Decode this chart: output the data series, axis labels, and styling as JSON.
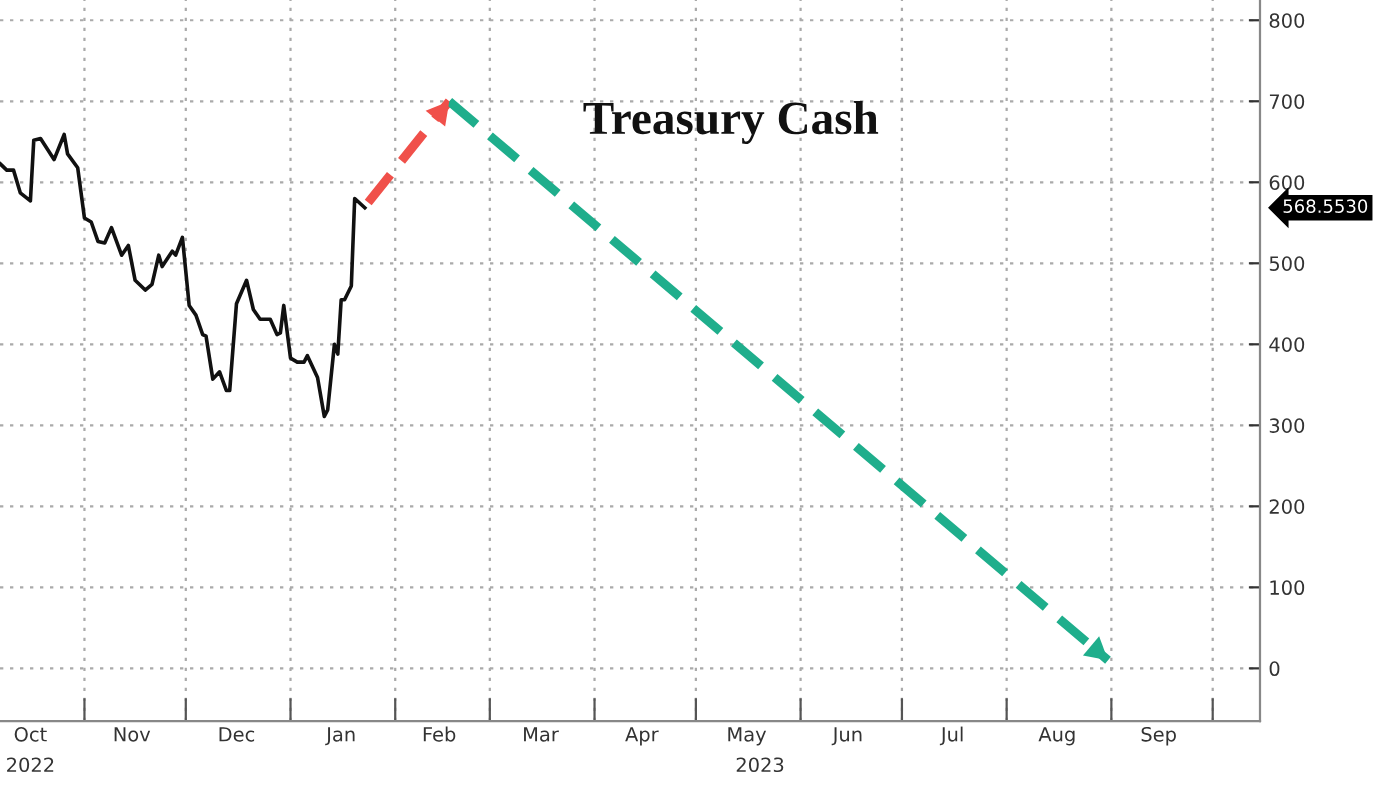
{
  "chart_data": {
    "type": "line",
    "title": "Treasury Cash",
    "xlim": [
      "2022-10-07",
      "2023-10-15"
    ],
    "xticks": [
      {
        "value": "2022-10-16",
        "label": "Oct"
      },
      {
        "value": "2022-11-01",
        "label": null
      },
      {
        "value": "2022-11-15",
        "label": "Nov"
      },
      {
        "value": "2022-12-01",
        "label": null
      },
      {
        "value": "2022-12-16",
        "label": "Dec"
      },
      {
        "value": "2023-01-01",
        "label": null
      },
      {
        "value": "2023-01-16",
        "label": "Jan"
      },
      {
        "value": "2023-02-01",
        "label": null
      },
      {
        "value": "2023-02-14",
        "label": "Feb"
      },
      {
        "value": "2023-03-01",
        "label": null
      },
      {
        "value": "2023-03-16",
        "label": "Mar"
      },
      {
        "value": "2023-04-01",
        "label": null
      },
      {
        "value": "2023-04-15",
        "label": "Apr"
      },
      {
        "value": "2023-05-01",
        "label": null
      },
      {
        "value": "2023-05-16",
        "label": "May"
      },
      {
        "value": "2023-06-01",
        "label": null
      },
      {
        "value": "2023-06-15",
        "label": "Jun"
      },
      {
        "value": "2023-07-01",
        "label": null
      },
      {
        "value": "2023-07-16",
        "label": "Jul"
      },
      {
        "value": "2023-08-01",
        "label": null
      },
      {
        "value": "2023-08-16",
        "label": "Aug"
      },
      {
        "value": "2023-09-01",
        "label": null
      },
      {
        "value": "2023-09-15",
        "label": "Sep"
      },
      {
        "value": "2023-10-01",
        "label": null
      }
    ],
    "x2lim": [
      "2022-10-07",
      "2023-10-15"
    ],
    "x2ticks": [
      {
        "value": "2022-10-16",
        "label": "2022"
      },
      {
        "value": "2023-05-20",
        "label": "2023"
      }
    ],
    "ylim": [
      -65,
      825
    ],
    "yticks": [
      0,
      100,
      200,
      300,
      400,
      500,
      600,
      700,
      800
    ],
    "grid": true,
    "line_style": "solid",
    "series": [
      {
        "color": "#111111",
        "x": [
          "2022-10-07",
          "2022-10-09",
          "2022-10-11",
          "2022-10-13",
          "2022-10-16",
          "2022-10-17",
          "2022-10-19",
          "2022-10-23",
          "2022-10-26",
          "2022-10-27",
          "2022-10-30",
          "2022-11-01",
          "2022-11-03",
          "2022-11-05",
          "2022-11-07",
          "2022-11-09",
          "2022-11-12",
          "2022-11-14",
          "2022-11-16",
          "2022-11-19",
          "2022-11-21",
          "2022-11-23",
          "2022-11-24",
          "2022-11-27",
          "2022-11-28",
          "2022-11-30",
          "2022-12-02",
          "2022-12-04",
          "2022-12-06",
          "2022-12-07",
          "2022-12-09",
          "2022-12-11",
          "2022-12-13",
          "2022-12-14",
          "2022-12-16",
          "2022-12-19",
          "2022-12-21",
          "2022-12-23",
          "2022-12-26",
          "2022-12-28",
          "2022-12-29",
          "2022-12-30",
          "2023-01-01",
          "2023-01-03",
          "2023-01-05",
          "2023-01-06",
          "2023-01-09",
          "2023-01-11",
          "2023-01-12",
          "2023-01-14",
          "2023-01-15",
          "2023-01-16",
          "2023-01-17",
          "2023-01-19",
          "2023-01-20",
          "2023-01-23"
        ],
        "values": [
          623,
          615,
          615,
          587,
          577,
          652,
          654,
          628,
          659,
          635,
          618,
          556,
          551,
          527,
          525,
          544,
          510,
          522,
          479,
          467,
          474,
          510,
          496,
          515,
          510,
          532,
          448,
          436,
          412,
          410,
          357,
          366,
          343,
          343,
          450,
          479,
          443,
          431,
          431,
          412,
          414,
          448,
          383,
          378,
          378,
          386,
          359,
          311,
          319,
          400,
          388,
          455,
          455,
          472,
          580,
          568.553
        ]
      },
      {
        "color": "#f0504a",
        "line_style": "dashed",
        "x": [
          "2023-01-24",
          "2023-02-17"
        ],
        "values": [
          575,
          700
        ]
      },
      {
        "color": "#1fae8c",
        "line_style": "dashed",
        "x": [
          "2023-02-17",
          "2023-08-31"
        ],
        "values": [
          700,
          10
        ]
      }
    ],
    "annotations": [
      "568.5530"
    ]
  }
}
